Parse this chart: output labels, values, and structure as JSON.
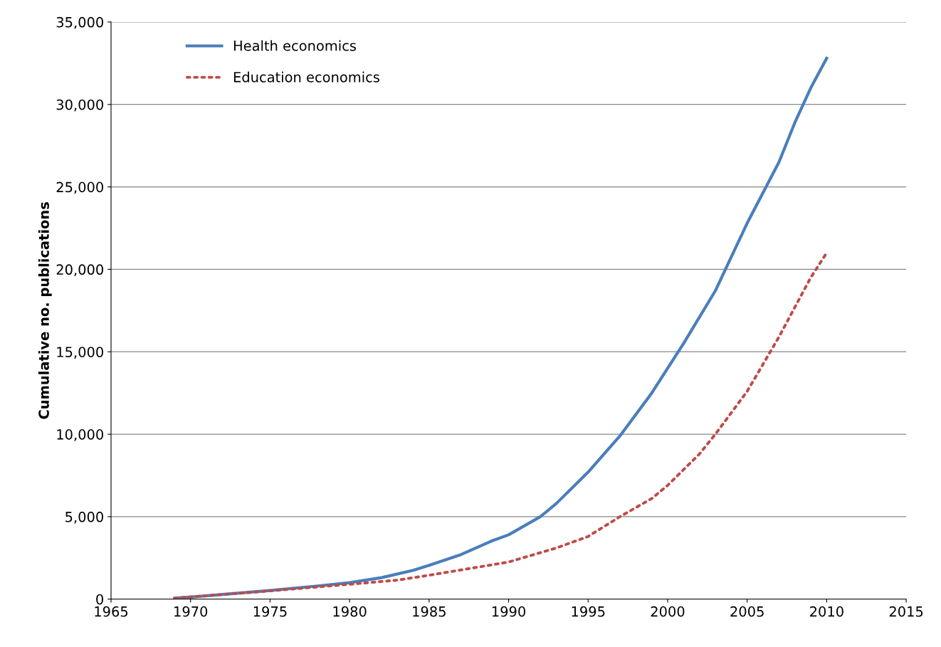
{
  "chart_data": {
    "type": "line",
    "ylabel": "Cumulative no. publications",
    "xlim": [
      1965,
      2015
    ],
    "xticks": [
      1965,
      1970,
      1975,
      1980,
      1985,
      1990,
      1995,
      2000,
      2005,
      2010,
      2015
    ],
    "ylim": [
      0,
      35000
    ],
    "yticks": [
      {
        "value": 0,
        "label": "0"
      },
      {
        "value": 5000,
        "label": "5,000"
      },
      {
        "value": 10000,
        "label": "10,000"
      },
      {
        "value": 15000,
        "label": "15,000"
      },
      {
        "value": 20000,
        "label": "20,000"
      },
      {
        "value": 25000,
        "label": "25,000"
      },
      {
        "value": 30000,
        "label": "30,000"
      },
      {
        "value": 35000,
        "label": "35,000"
      }
    ],
    "grid": "y",
    "legend": "top left",
    "marker": "none",
    "series": [
      {
        "name": "Health economics",
        "color": "#4a7ebb",
        "line_style": "solid",
        "x": [
          1969,
          1970,
          1975,
          1978,
          1980,
          1982,
          1984,
          1985,
          1987,
          1989,
          1990,
          1992,
          1993,
          1995,
          1997,
          1999,
          2000,
          2001,
          2003,
          2005,
          2007,
          2008,
          2009,
          2010
        ],
        "values": [
          60,
          120,
          520,
          800,
          1000,
          1300,
          1750,
          2050,
          2700,
          3550,
          3900,
          5000,
          5800,
          7700,
          9900,
          12500,
          14000,
          15500,
          18700,
          22800,
          26500,
          28900,
          31000,
          32800
        ]
      },
      {
        "name": "Education economics",
        "color": "#be4b48",
        "line_style": "dotted",
        "x": [
          1969,
          1975,
          1980,
          1983,
          1985,
          1990,
          1993,
          1995,
          1997,
          1999,
          2000,
          2002,
          2003,
          2005,
          2007,
          2008,
          2009,
          2010
        ],
        "values": [
          60,
          500,
          900,
          1150,
          1450,
          2250,
          3100,
          3800,
          5000,
          6100,
          6900,
          8800,
          10000,
          12600,
          15900,
          17700,
          19500,
          21000
        ]
      }
    ]
  }
}
